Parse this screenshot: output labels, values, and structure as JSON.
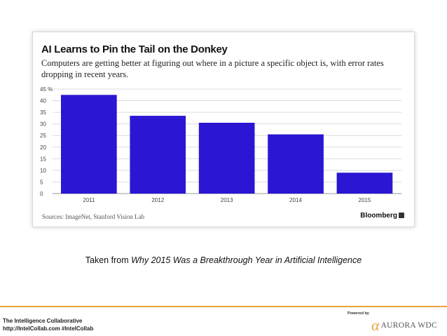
{
  "chart_data": {
    "type": "bar",
    "title": "AI Learns to Pin the Tail on the Donkey",
    "subtitle": "Computers are getting better at figuring out where in a picture a specific object is, with error rates dropping in recent years.",
    "categories": [
      "2011",
      "2012",
      "2013",
      "2014",
      "2015"
    ],
    "values": [
      42.5,
      33.5,
      30.5,
      25.5,
      9
    ],
    "ylim": [
      0,
      45
    ],
    "yticks": [
      0,
      5,
      10,
      15,
      20,
      25,
      30,
      35,
      40,
      45
    ],
    "ytick_labels": [
      "0",
      "5",
      "10",
      "15",
      "20",
      "25",
      "30",
      "35",
      "40",
      "45 %"
    ],
    "xlabel": "",
    "ylabel": "",
    "grid": true,
    "bar_color": "#2b17d3",
    "source": "Sources: ImageNet, Stanford Vision Lab",
    "brand": "Bloomberg"
  },
  "caption": {
    "prefix": "Taken from ",
    "title": "Why 2015 Was a Breakthrough Year in Artificial Intelligence"
  },
  "footer": {
    "org": "The Intelligence Collaborative",
    "url": "http://IntelCollab.com #IntelCollab",
    "powered_by": "Powered by",
    "logo_symbol": "α",
    "logo_text": "AURORA WDC",
    "accent_color": "#e8a53a"
  }
}
